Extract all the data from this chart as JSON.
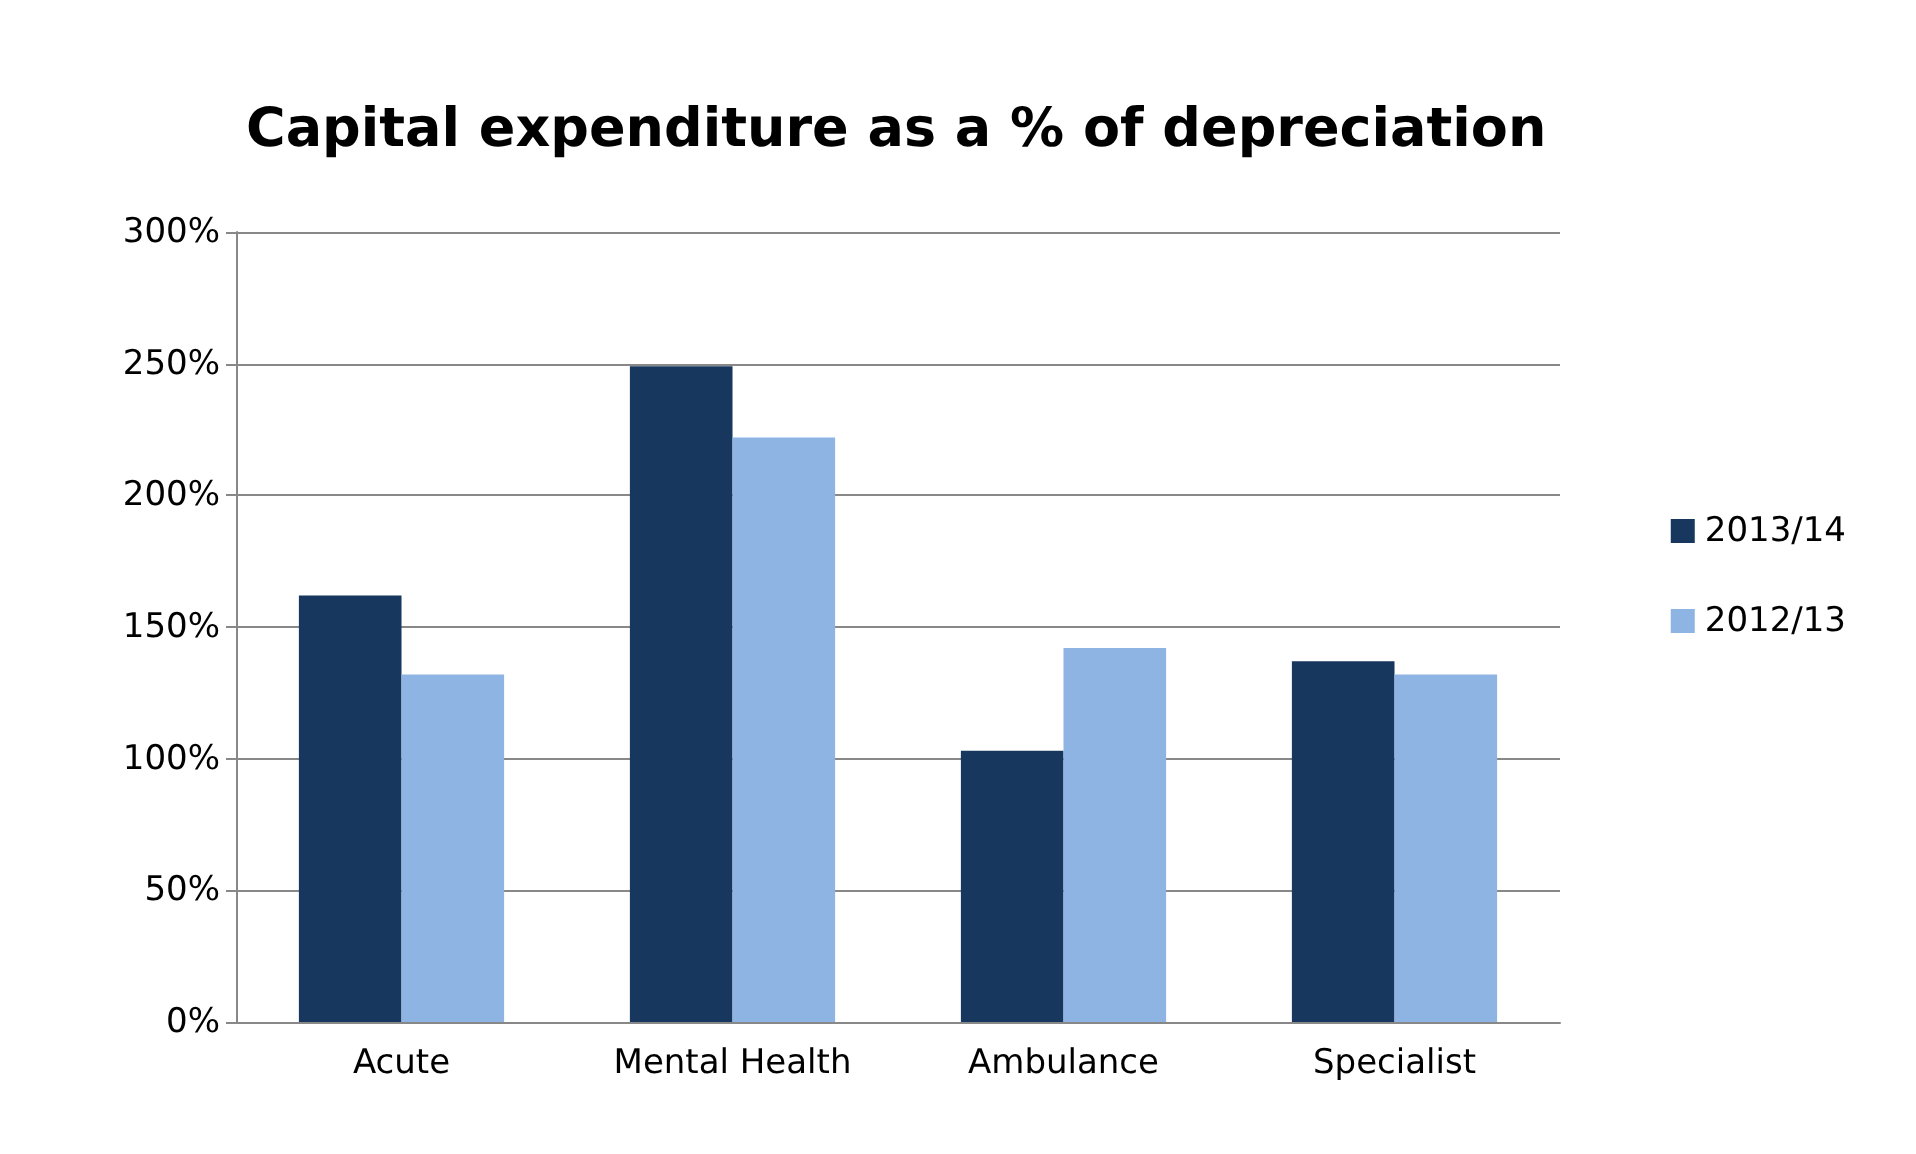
{
  "chart_data": {
    "type": "bar",
    "title": "Capital expenditure as a % of depreciation",
    "categories": [
      "Acute",
      "Mental Health",
      "Ambulance",
      "Specialist"
    ],
    "series": [
      {
        "name": "2013/14",
        "color": "#17375e",
        "values": [
          162,
          249,
          103,
          137
        ]
      },
      {
        "name": "2012/13",
        "color": "#8db4e2",
        "values": [
          132,
          222,
          142,
          132
        ]
      }
    ],
    "ylim": [
      0,
      300
    ],
    "yticks": [
      {
        "value": 0,
        "label": "0%"
      },
      {
        "value": 50,
        "label": "50%"
      },
      {
        "value": 100,
        "label": "100%"
      },
      {
        "value": 150,
        "label": "150%"
      },
      {
        "value": 200,
        "label": "200%"
      },
      {
        "value": 250,
        "label": "250%"
      },
      {
        "value": 300,
        "label": "300%"
      }
    ],
    "grid": "y",
    "legend": "right"
  }
}
